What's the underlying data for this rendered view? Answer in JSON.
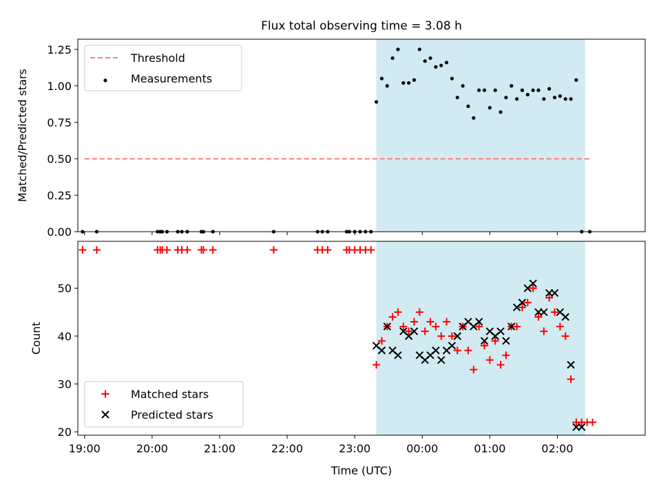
{
  "title": "Flux total observing time = 3.08 h",
  "colors": {
    "threshold": "#ff7f7f",
    "measurement": "#000000",
    "matched": "#ff0000",
    "predicted": "#000000",
    "shade": "#add8e6"
  },
  "chart_data": [
    {
      "type": "scatter",
      "panel": "top",
      "ylabel": "Matched/Predicted stars",
      "ylim": [
        0,
        1.32
      ],
      "yticks": [
        "0.00",
        "0.25",
        "0.50",
        "0.75",
        "1.00",
        "1.25"
      ],
      "xlim": [
        -5.1,
        3.3
      ],
      "xticks": [],
      "shade_range": [
        -0.68,
        2.41
      ],
      "threshold": {
        "name": "Threshold",
        "value": 0.5,
        "x_range": [
          -5.0,
          2.5
        ]
      },
      "legend": {
        "position": "top-left",
        "entries": [
          "Threshold",
          "Measurements"
        ]
      },
      "series": [
        {
          "name": "Measurements",
          "x": [
            -5.03,
            -4.82,
            -3.92,
            -3.88,
            -3.85,
            -3.78,
            -3.62,
            -3.56,
            -3.48,
            -3.27,
            -3.24,
            -3.1,
            -2.2,
            -1.55,
            -1.48,
            -1.4,
            -1.12,
            -1.08,
            -1.0,
            -0.92,
            -0.84,
            -0.76,
            -0.68,
            -0.6,
            -0.52,
            -0.44,
            -0.36,
            -0.28,
            -0.2,
            -0.12,
            -0.04,
            0.04,
            0.12,
            0.2,
            0.28,
            0.36,
            0.44,
            0.52,
            0.6,
            0.68,
            0.76,
            0.84,
            0.92,
            1.0,
            1.08,
            1.16,
            1.24,
            1.32,
            1.4,
            1.48,
            1.56,
            1.64,
            1.72,
            1.8,
            1.88,
            1.96,
            2.04,
            2.12,
            2.2,
            2.28,
            2.36,
            2.48
          ],
          "y": [
            0,
            0,
            0,
            0,
            0,
            0,
            0,
            0,
            0,
            0,
            0,
            0,
            0,
            0,
            0,
            0,
            0,
            0,
            0,
            0,
            0,
            0,
            0.89,
            1.05,
            1.0,
            1.19,
            1.25,
            1.02,
            1.02,
            1.04,
            1.25,
            1.17,
            1.19,
            1.13,
            1.14,
            1.16,
            1.05,
            0.92,
            1.0,
            0.86,
            0.78,
            0.97,
            0.97,
            0.85,
            0.97,
            0.82,
            0.92,
            1.0,
            0.91,
            0.97,
            0.94,
            0.97,
            0.97,
            0.91,
            0.98,
            0.92,
            0.93,
            0.91,
            0.91,
            1.04,
            0,
            0
          ]
        }
      ]
    },
    {
      "type": "scatter",
      "panel": "bottom",
      "xlabel": "Time (UTC)",
      "ylabel": "Count",
      "ylim": [
        19.3,
        59.8
      ],
      "yticks": [
        "20",
        "30",
        "40",
        "50"
      ],
      "xlim": [
        -5.1,
        3.3
      ],
      "xticks": [
        "19:00",
        "20:00",
        "21:00",
        "22:00",
        "23:00",
        "00:00",
        "01:00",
        "02:00"
      ],
      "shade_range": [
        -0.68,
        2.41
      ],
      "legend": {
        "position": "bottom-left",
        "entries": [
          "Matched stars",
          "Predicted stars"
        ]
      },
      "series": [
        {
          "name": "Matched stars",
          "marker": "+",
          "x": [
            -5.03,
            -4.82,
            -3.92,
            -3.88,
            -3.85,
            -3.78,
            -3.62,
            -3.56,
            -3.48,
            -3.27,
            -3.24,
            -3.1,
            -2.2,
            -1.55,
            -1.48,
            -1.4,
            -1.12,
            -1.08,
            -1.0,
            -0.92,
            -0.84,
            -0.76,
            -0.68,
            -0.6,
            -0.52,
            -0.44,
            -0.36,
            -0.28,
            -0.2,
            -0.12,
            -0.04,
            0.04,
            0.12,
            0.2,
            0.28,
            0.36,
            0.44,
            0.52,
            0.6,
            0.68,
            0.76,
            0.84,
            0.92,
            1.0,
            1.08,
            1.16,
            1.24,
            1.32,
            1.4,
            1.48,
            1.56,
            1.64,
            1.72,
            1.8,
            1.88,
            1.96,
            2.04,
            2.12,
            2.2,
            2.28,
            2.36,
            2.44,
            2.52
          ],
          "y": [
            58,
            58,
            58,
            58,
            58,
            58,
            58,
            58,
            58,
            58,
            58,
            58,
            58,
            58,
            58,
            58,
            58,
            58,
            58,
            58,
            58,
            58,
            34,
            39,
            42,
            44,
            45,
            42,
            41,
            43,
            45,
            41,
            43,
            42,
            40,
            43,
            40,
            37,
            42,
            37,
            33,
            42,
            38,
            35,
            39,
            34,
            36,
            42,
            42,
            46,
            47,
            50,
            44,
            41,
            48,
            45,
            42,
            40,
            31,
            22,
            22,
            22,
            22
          ]
        },
        {
          "name": "Predicted stars",
          "marker": "x",
          "x": [
            -0.68,
            -0.6,
            -0.52,
            -0.44,
            -0.36,
            -0.28,
            -0.2,
            -0.12,
            -0.04,
            0.04,
            0.12,
            0.2,
            0.28,
            0.36,
            0.44,
            0.52,
            0.6,
            0.68,
            0.76,
            0.84,
            0.92,
            1.0,
            1.08,
            1.16,
            1.24,
            1.32,
            1.4,
            1.48,
            1.56,
            1.64,
            1.72,
            1.8,
            1.88,
            1.96,
            2.04,
            2.12,
            2.2,
            2.28,
            2.36
          ],
          "y": [
            38,
            37,
            42,
            37,
            36,
            41,
            40,
            41,
            36,
            35,
            36,
            37,
            35,
            37,
            38,
            40,
            42,
            43,
            42,
            43,
            39,
            41,
            40,
            41,
            39,
            42,
            46,
            47,
            50,
            51,
            45,
            45,
            49,
            49,
            45,
            44,
            34,
            21,
            21
          ]
        }
      ]
    }
  ]
}
